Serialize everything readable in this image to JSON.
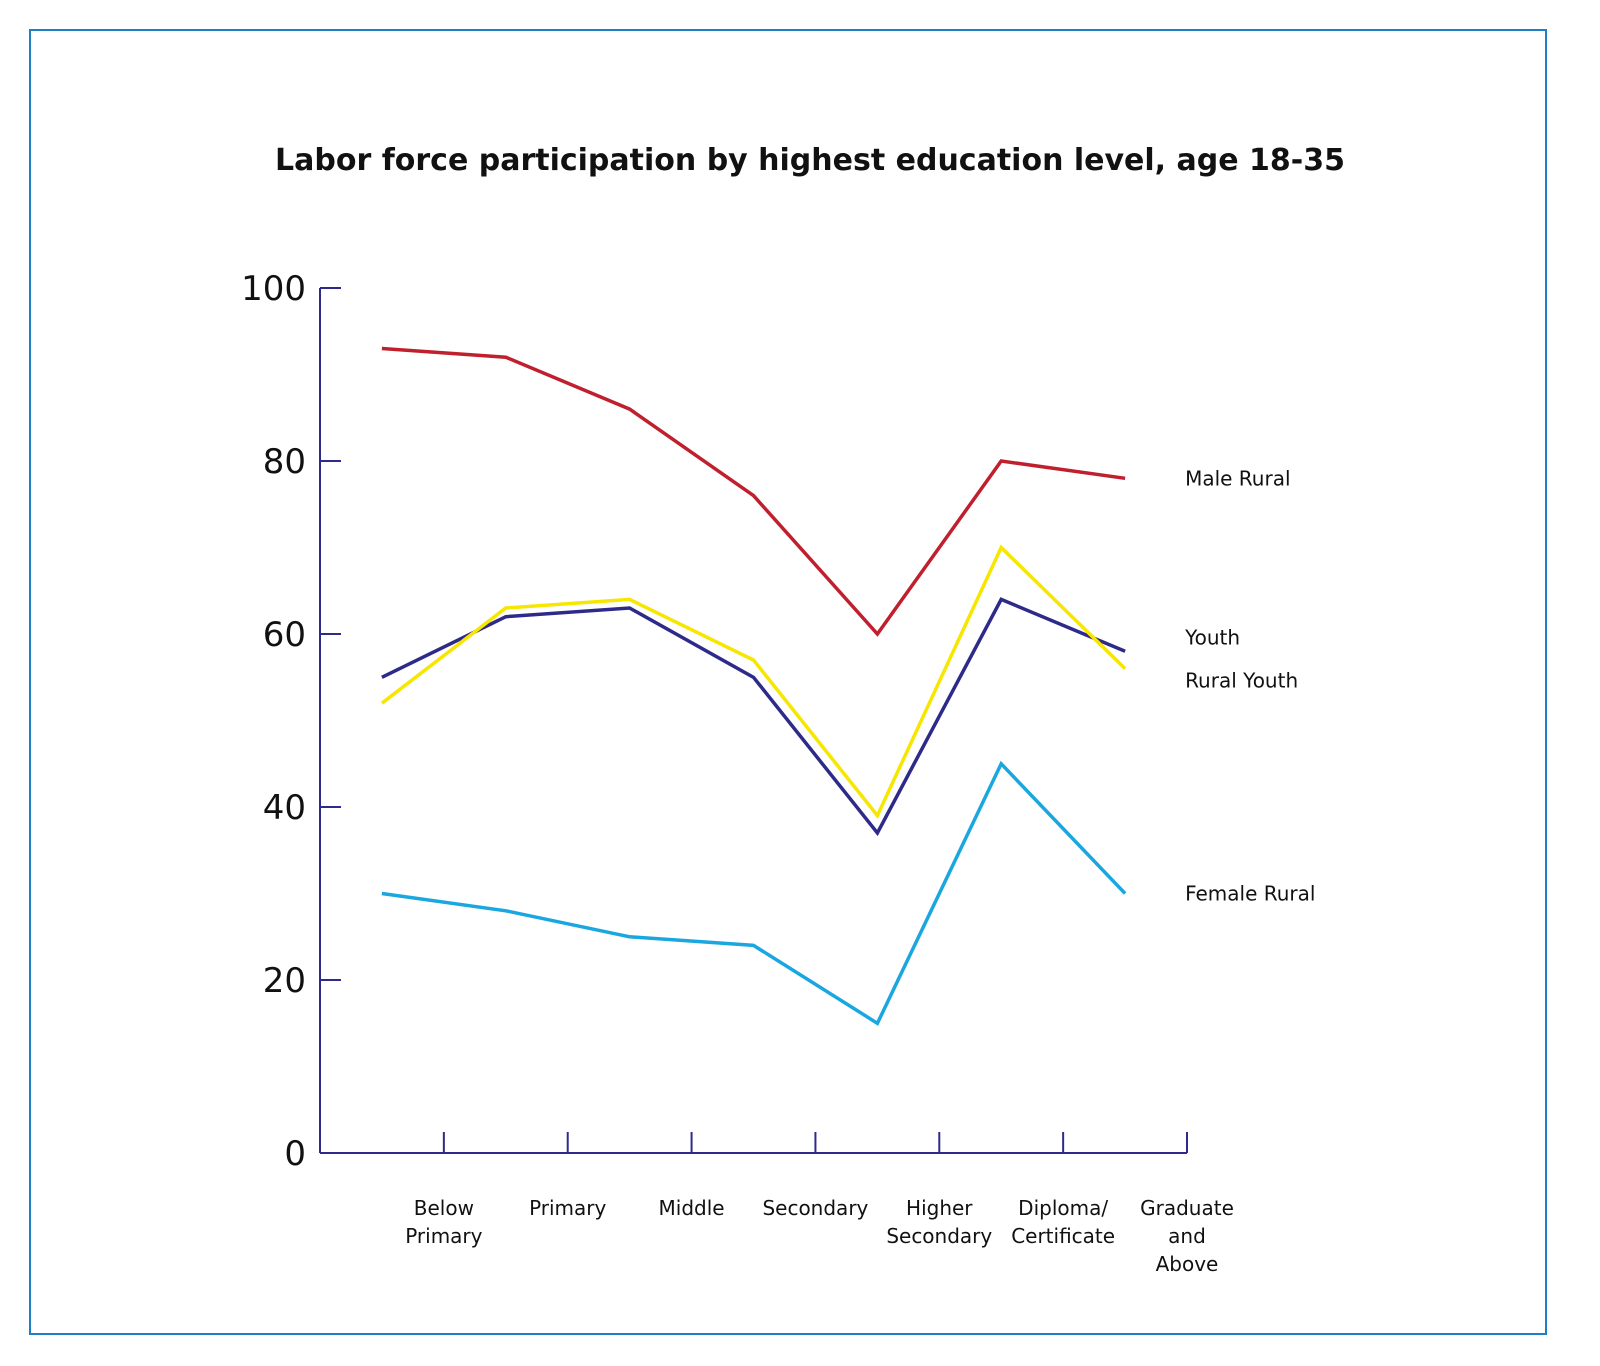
{
  "chart_data": {
    "type": "line",
    "title": "Labor force participation by  highest education level, age 18-35",
    "xlabel": "",
    "ylabel": "",
    "ylim": [
      0,
      100
    ],
    "yticks": [
      "0",
      "20",
      "40",
      "60",
      "80",
      "100"
    ],
    "categories": [
      [
        "Below",
        "Primary"
      ],
      [
        "Primary"
      ],
      [
        "Middle"
      ],
      [
        "Secondary"
      ],
      [
        "Higher",
        "Secondary"
      ],
      [
        "Diploma/",
        "Certificate"
      ],
      [
        "Graduate",
        "and",
        "Above"
      ]
    ],
    "grid": false,
    "legend": "inline labels at right end of lines",
    "series": [
      {
        "name": "Male Rural",
        "color": "#c0202e",
        "x": [
          0.5,
          1.5,
          2.5,
          3.5,
          4.5,
          5.5,
          6.5
        ],
        "values": [
          93,
          92,
          86,
          76,
          60,
          80,
          78
        ]
      },
      {
        "name": "Youth",
        "color": "#2e2a8a",
        "x": [
          0.5,
          1.5,
          2.5,
          3.5,
          4.5,
          5.5,
          6.5
        ],
        "values": [
          55,
          62,
          63,
          55,
          37,
          64,
          58
        ]
      },
      {
        "name": "Rural Youth",
        "color": "#f7e600",
        "x": [
          0.5,
          1.5,
          2.5,
          3.5,
          4.5,
          5.5,
          6.5
        ],
        "values": [
          52,
          63,
          64,
          57,
          39,
          70,
          56
        ]
      },
      {
        "name": "Female Rural",
        "color": "#1aa7df",
        "x": [
          0.5,
          1.5,
          2.5,
          3.5,
          4.5,
          5.5,
          6.5
        ],
        "values": [
          30,
          28,
          25,
          24,
          15,
          45,
          30
        ]
      }
    ],
    "axis_color": "#2e2a8a",
    "frame_color": "#1f7fc4"
  }
}
